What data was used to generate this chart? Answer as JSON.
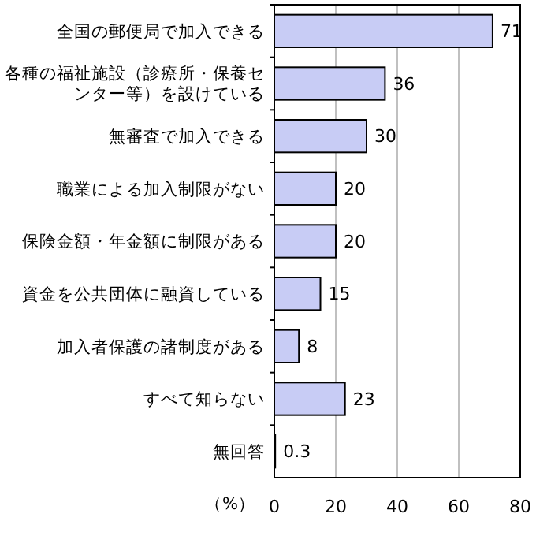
{
  "chart_data": {
    "type": "bar",
    "orientation": "horizontal",
    "categories": [
      "全国の郵便局で加入できる",
      "各種の福祉施設（診療所・保養センター等）を設けている",
      "無審査で加入できる",
      "職業による加入制限がない",
      "保険金額・年金額に制限がある",
      "資金を公共団体に融資している",
      "加入者保護の諸制度がある",
      "すべて知らない",
      "無回答"
    ],
    "values": [
      71,
      36,
      30,
      20,
      20,
      15,
      8,
      23,
      0.3
    ],
    "color": "#c8ccf5",
    "xlim": [
      0,
      80
    ],
    "xticks": [
      0,
      20,
      40,
      60,
      80
    ],
    "xlabel": "（%）",
    "grid": "x",
    "data_labels": true
  }
}
